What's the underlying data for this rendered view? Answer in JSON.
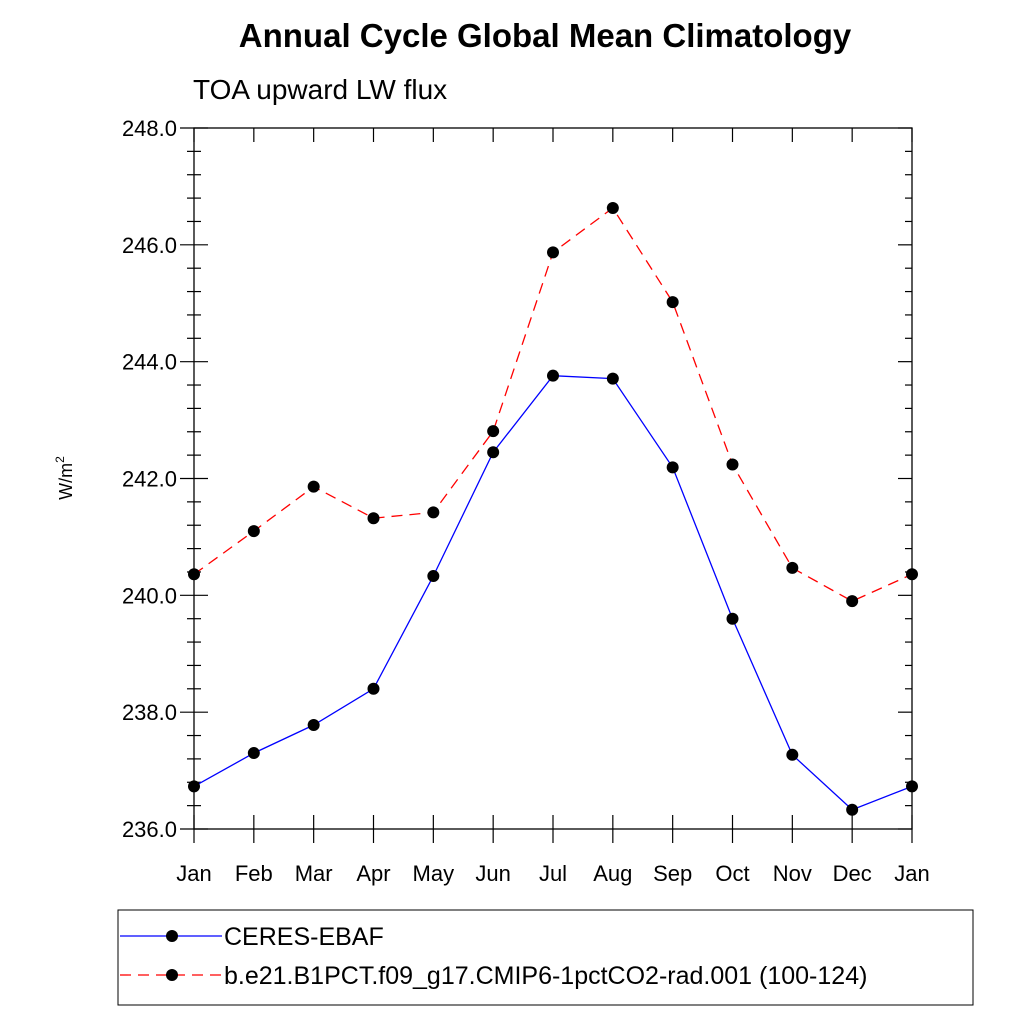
{
  "chart_data": {
    "type": "line",
    "title": "Annual Cycle Global Mean Climatology",
    "subtitle": "TOA upward LW flux",
    "xlabel": "",
    "ylabel": "W/m",
    "ylabel_superscript": "2",
    "categories": [
      "Jan",
      "Feb",
      "Mar",
      "Apr",
      "May",
      "Jun",
      "Jul",
      "Aug",
      "Sep",
      "Oct",
      "Nov",
      "Dec",
      "Jan"
    ],
    "ylim": [
      236.0,
      248.0
    ],
    "yticks": [
      "236.0",
      "238.0",
      "240.0",
      "242.0",
      "244.0",
      "246.0",
      "248.0"
    ],
    "grid": false,
    "legend_position": "bottom",
    "series": [
      {
        "name": "CERES-EBAF",
        "color": "#0000ff",
        "style": "solid",
        "values": [
          236.73,
          237.3,
          237.78,
          238.4,
          240.33,
          242.45,
          243.76,
          243.71,
          242.19,
          239.6,
          237.27,
          236.33,
          236.73
        ]
      },
      {
        "name": "b.e21.B1PCT.f09_g17.CMIP6-1pctCO2-rad.001 (100-124)",
        "color": "#ff0000",
        "style": "dashed",
        "values": [
          240.36,
          241.1,
          241.86,
          241.32,
          241.42,
          242.81,
          245.87,
          246.63,
          245.02,
          242.24,
          240.47,
          239.9,
          240.36
        ]
      }
    ]
  }
}
